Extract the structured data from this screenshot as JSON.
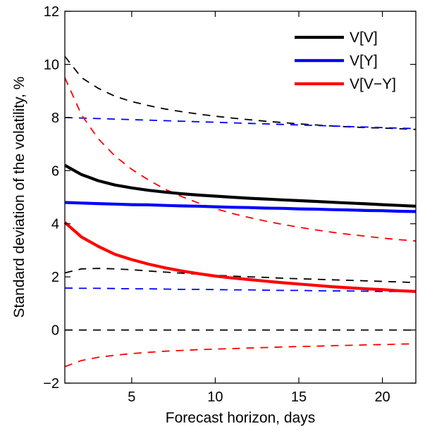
{
  "chart_data": {
    "type": "line",
    "title": "",
    "xlabel": "Forecast horizon, days",
    "ylabel": "Standard deviation of the volatility, %",
    "xlim": [
      1,
      22
    ],
    "ylim": [
      -2,
      12
    ],
    "xticks": [
      5,
      10,
      15,
      20
    ],
    "yticks": [
      -2,
      0,
      2,
      4,
      6,
      8,
      10,
      12
    ],
    "grid": false,
    "legend": "top-right",
    "x": [
      1,
      2,
      3,
      4,
      5,
      6,
      7,
      8,
      9,
      10,
      11,
      12,
      13,
      14,
      15,
      16,
      17,
      18,
      19,
      20,
      21,
      22
    ],
    "series": [
      {
        "name": "V[V]",
        "color": "#000000",
        "style": "solid",
        "values": [
          6.2,
          5.85,
          5.62,
          5.46,
          5.35,
          5.26,
          5.19,
          5.13,
          5.08,
          5.04,
          5.0,
          4.96,
          4.93,
          4.9,
          4.87,
          4.84,
          4.81,
          4.78,
          4.75,
          4.72,
          4.69,
          4.66
        ]
      },
      {
        "name": "V[Y]",
        "color": "#0000ff",
        "style": "solid",
        "values": [
          4.8,
          4.78,
          4.76,
          4.74,
          4.72,
          4.71,
          4.69,
          4.67,
          4.66,
          4.64,
          4.62,
          4.61,
          4.59,
          4.58,
          4.56,
          4.55,
          4.53,
          4.52,
          4.5,
          4.49,
          4.47,
          4.46
        ]
      },
      {
        "name": "V[V−Y]",
        "color": "#ff0000",
        "style": "solid",
        "values": [
          4.05,
          3.5,
          3.15,
          2.85,
          2.65,
          2.48,
          2.34,
          2.22,
          2.12,
          2.03,
          1.96,
          1.9,
          1.84,
          1.78,
          1.73,
          1.68,
          1.63,
          1.59,
          1.55,
          1.52,
          1.48,
          1.45
        ]
      },
      {
        "color": "#000000",
        "style": "dashed",
        "values": [
          10.3,
          9.5,
          9.1,
          8.8,
          8.6,
          8.45,
          8.32,
          8.22,
          8.13,
          8.05,
          7.98,
          7.92,
          7.86,
          7.81,
          7.76,
          7.72,
          7.68,
          7.65,
          7.62,
          7.6,
          7.58,
          7.55
        ]
      },
      {
        "color": "#000000",
        "style": "dashed",
        "values": [
          2.15,
          2.3,
          2.32,
          2.3,
          2.27,
          2.22,
          2.18,
          2.14,
          2.1,
          2.06,
          2.03,
          2.0,
          1.98,
          1.95,
          1.93,
          1.91,
          1.89,
          1.87,
          1.85,
          1.83,
          1.81,
          1.78
        ]
      },
      {
        "color": "#0000ff",
        "style": "dashed",
        "values": [
          8.0,
          7.98,
          7.96,
          7.94,
          7.92,
          7.9,
          7.88,
          7.86,
          7.84,
          7.82,
          7.8,
          7.78,
          7.76,
          7.74,
          7.72,
          7.7,
          7.68,
          7.66,
          7.64,
          7.62,
          7.6,
          7.58
        ]
      },
      {
        "color": "#0000ff",
        "style": "dashed",
        "values": [
          1.58,
          1.57,
          1.57,
          1.56,
          1.55,
          1.55,
          1.54,
          1.53,
          1.53,
          1.52,
          1.51,
          1.51,
          1.5,
          1.49,
          1.49,
          1.48,
          1.47,
          1.47,
          1.46,
          1.45,
          1.45,
          1.44
        ]
      },
      {
        "color": "#ff0000",
        "style": "dashed",
        "values": [
          9.5,
          8.1,
          7.2,
          6.55,
          6.05,
          5.65,
          5.3,
          5.02,
          4.78,
          4.57,
          4.39,
          4.24,
          4.1,
          3.98,
          3.87,
          3.77,
          3.68,
          3.6,
          3.53,
          3.46,
          3.4,
          3.35
        ]
      },
      {
        "color": "#ff0000",
        "style": "dashed",
        "values": [
          -1.38,
          -1.15,
          -1.03,
          -0.95,
          -0.89,
          -0.84,
          -0.8,
          -0.77,
          -0.74,
          -0.72,
          -0.7,
          -0.68,
          -0.66,
          -0.64,
          -0.62,
          -0.61,
          -0.59,
          -0.58,
          -0.56,
          -0.55,
          -0.53,
          -0.52
        ]
      },
      {
        "color": "#000000",
        "style": "dashed",
        "values": [
          0,
          0,
          0,
          0,
          0,
          0,
          0,
          0,
          0,
          0,
          0,
          0,
          0,
          0,
          0,
          0,
          0,
          0,
          0,
          0,
          0,
          0
        ]
      }
    ]
  }
}
